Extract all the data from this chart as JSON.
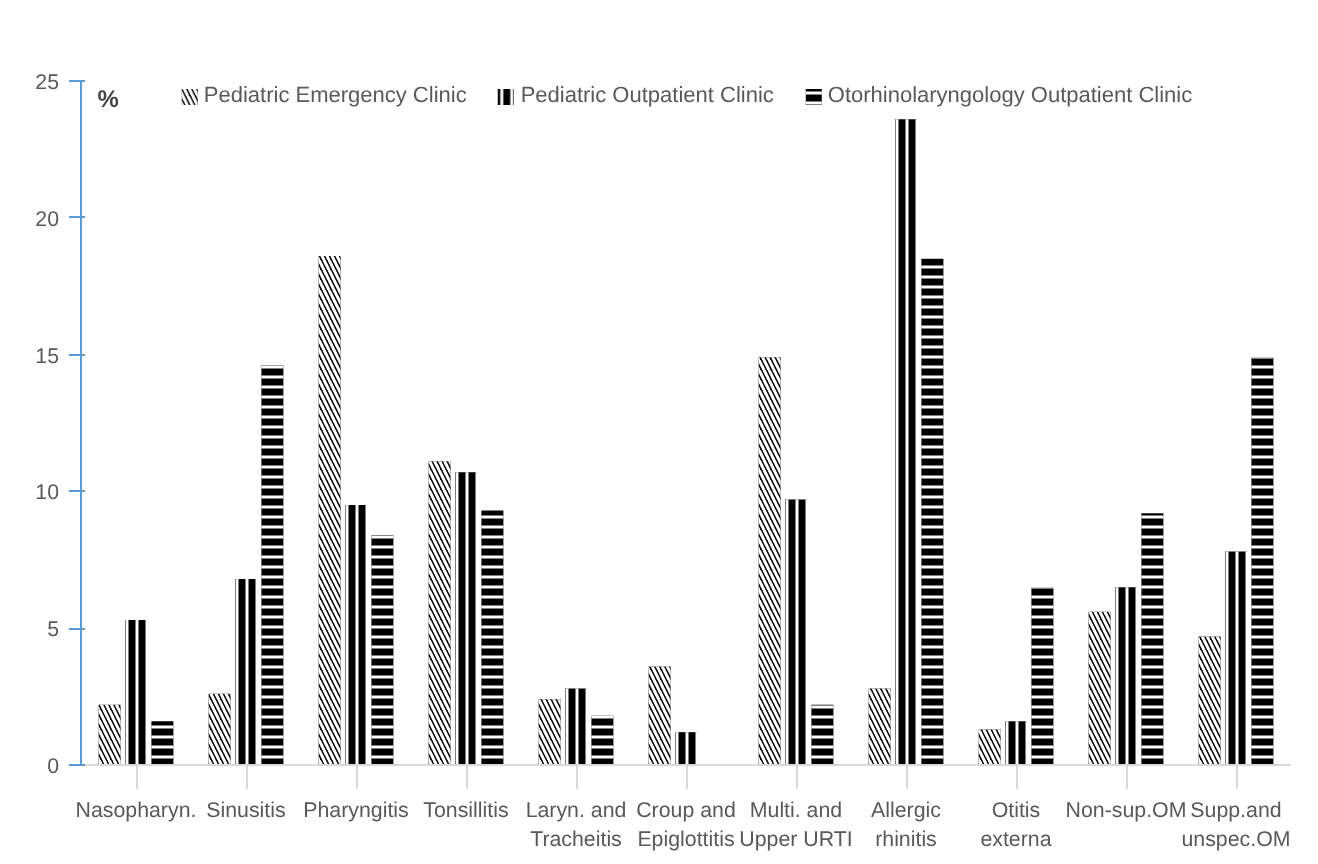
{
  "chart_data": {
    "type": "bar",
    "ylabel": "%",
    "categories": [
      "Nasopharyn.",
      "Sinusitis",
      "Pharyngitis",
      "Tonsillitis",
      "Laryn. and Tracheitis",
      "Croup and Epiglottitis",
      "Multi. and Upper URTI",
      "Allergic rhinitis",
      "Otitis externa",
      "Non-sup.OM",
      "Supp.and unspec.OM"
    ],
    "series": [
      {
        "name": "Pediatric Emergency Clinic",
        "color": "#000000",
        "values": [
          2.2,
          2.6,
          18.6,
          11.1,
          2.4,
          3.6,
          14.9,
          2.8,
          1.3,
          5.6,
          4.7
        ]
      },
      {
        "name": "Pediatric Outpatient Clinic",
        "color": "#000000",
        "values": [
          5.3,
          6.8,
          9.5,
          10.7,
          2.8,
          1.2,
          9.7,
          23.6,
          1.6,
          6.5,
          7.8
        ]
      },
      {
        "name": "Otorhinolaryngology Outpatient Clinic",
        "color": "#000000",
        "values": [
          1.6,
          14.6,
          8.4,
          9.3,
          1.8,
          0,
          2.2,
          18.5,
          6.5,
          9.2,
          14.9
        ]
      }
    ],
    "ylim": [
      0,
      25
    ],
    "yticks": [
      0,
      5,
      10,
      15,
      20,
      25
    ],
    "grid": false,
    "legend": "top"
  }
}
